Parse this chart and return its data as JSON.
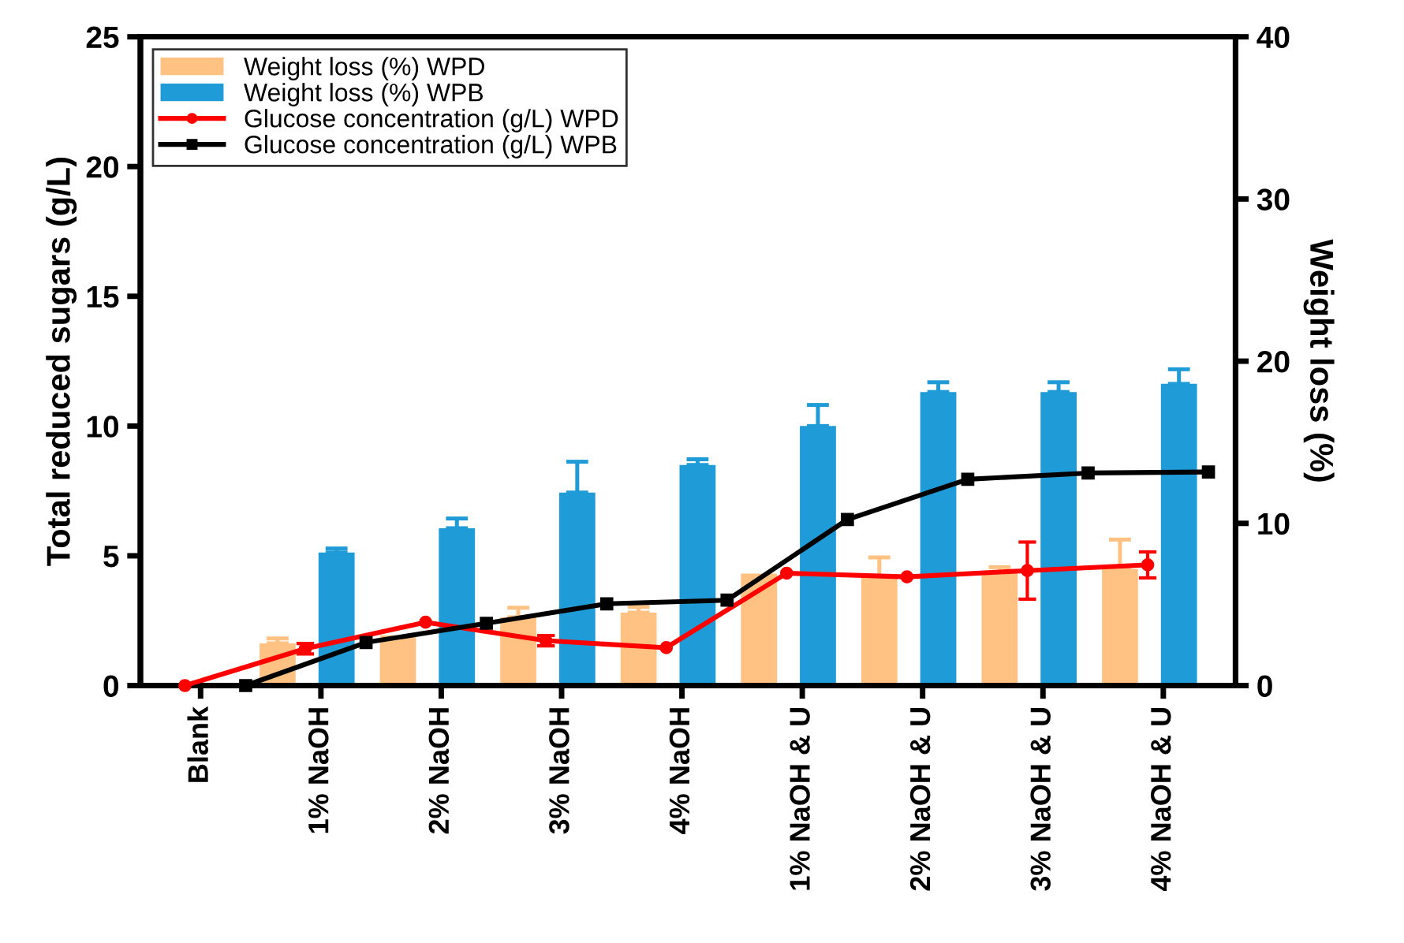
{
  "chart_data": {
    "type": "bar",
    "ylabel": "Total reduced sugars (g/L)",
    "y2label": "Weight loss (%)",
    "categories": [
      "Blank",
      "1% NaOH",
      "2% NaOH",
      "3% NaOH",
      "4% NaOH",
      "1% NaOH & U",
      "2% NaOH & U",
      "3% NaOH & U",
      "4% NaOH & U"
    ],
    "series": [
      {
        "name": "Weight loss (%) WPD",
        "axis": "y2",
        "color": "#ffc283",
        "values": [
          0,
          2.6,
          3.1,
          4.2,
          4.5,
          6.9,
          6.7,
          7.0,
          7.2
        ],
        "errors": [
          null,
          0.3,
          null,
          0.6,
          0.35,
          null,
          1.2,
          0.3,
          1.8
        ]
      },
      {
        "name": "Weight loss (%) WPB",
        "axis": "y2",
        "color": "#1f9bd7",
        "values": [
          0,
          8.2,
          9.7,
          11.9,
          13.6,
          16.0,
          18.1,
          18.1,
          18.6
        ],
        "errors": [
          null,
          0.25,
          0.6,
          1.9,
          0.35,
          1.3,
          0.6,
          0.6,
          0.9
        ]
      },
      {
        "name": "Glucose concentration (g/L) WPD",
        "type": "line",
        "marker": "circle",
        "color": "#ff0000",
        "values": [
          0,
          1.42,
          2.44,
          1.73,
          1.46,
          4.33,
          4.19,
          4.43,
          4.65
        ],
        "errors": [
          null,
          0.2,
          null,
          0.2,
          null,
          null,
          null,
          1.1,
          0.5
        ]
      },
      {
        "name": "Glucose concentration (g/L) WPB",
        "type": "line",
        "marker": "square",
        "color": "#000000",
        "values": [
          0,
          1.66,
          2.4,
          3.15,
          3.29,
          6.4,
          7.95,
          8.19,
          8.23
        ]
      }
    ],
    "ylim": [
      0,
      25
    ],
    "yticks": [
      0,
      5,
      10,
      15,
      20,
      25
    ],
    "y2lim": [
      0,
      40
    ],
    "y2ticks": [
      0,
      10,
      20,
      30,
      40
    ],
    "grid": false,
    "legend": "top left"
  }
}
